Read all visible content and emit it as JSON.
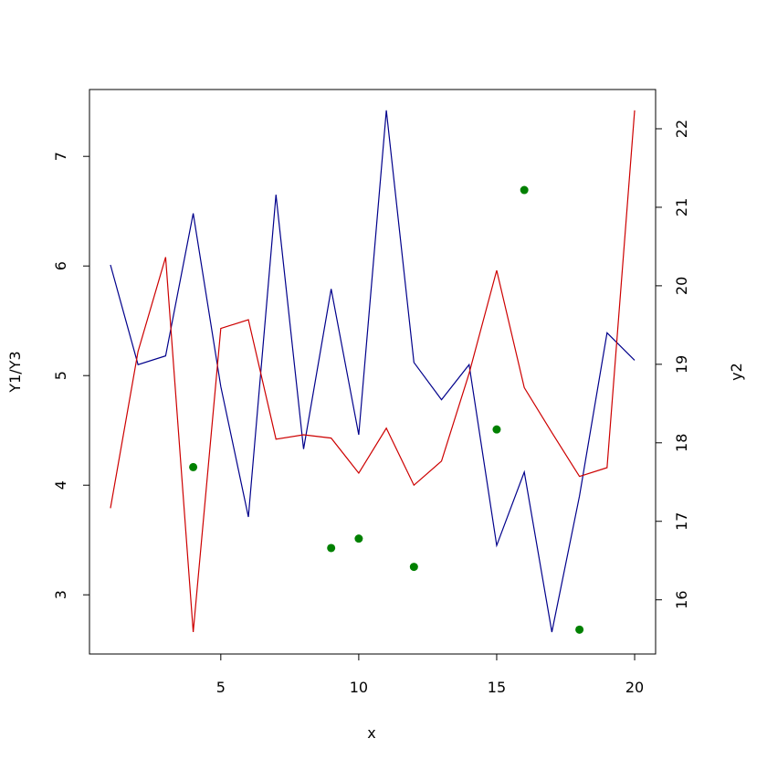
{
  "chart_data": {
    "type": "line",
    "xlabel": "x",
    "ylabel": "Y1/Y3",
    "y2label": "y2",
    "x": [
      1,
      2,
      3,
      4,
      5,
      6,
      7,
      8,
      9,
      10,
      11,
      12,
      13,
      14,
      15,
      16,
      17,
      18,
      19,
      20
    ],
    "xlim": [
      0.24,
      20.76
    ],
    "xticks": [
      5,
      10,
      15,
      20
    ],
    "ylim": [
      2.46,
      7.61
    ],
    "yticks": [
      3,
      4,
      5,
      6,
      7
    ],
    "y2lim": [
      15.31,
      22.5
    ],
    "y2ticks": [
      16,
      17,
      18,
      19,
      20,
      21,
      22
    ],
    "series": [
      {
        "color": "#00008b",
        "style": "line",
        "values": [
          6.01,
          5.1,
          5.18,
          6.48,
          4.9,
          3.71,
          6.65,
          4.33,
          5.79,
          4.46,
          7.42,
          5.12,
          4.78,
          5.1,
          3.45,
          4.12,
          2.66,
          3.9,
          5.39,
          5.14
        ]
      },
      {
        "color": "#cd0000",
        "style": "line",
        "values": [
          3.79,
          5.22,
          6.08,
          2.66,
          5.43,
          5.51,
          4.42,
          4.46,
          4.43,
          4.11,
          4.52,
          4.0,
          4.22,
          5.02,
          5.96,
          4.89,
          4.48,
          4.08,
          4.16,
          7.42
        ]
      },
      {
        "color": "#008000",
        "style": "points",
        "axis": "y2",
        "values": [
          null,
          null,
          null,
          17.69,
          null,
          null,
          null,
          null,
          16.66,
          16.78,
          null,
          16.42,
          null,
          null,
          18.17,
          21.22,
          null,
          15.62,
          null,
          null
        ]
      }
    ]
  }
}
